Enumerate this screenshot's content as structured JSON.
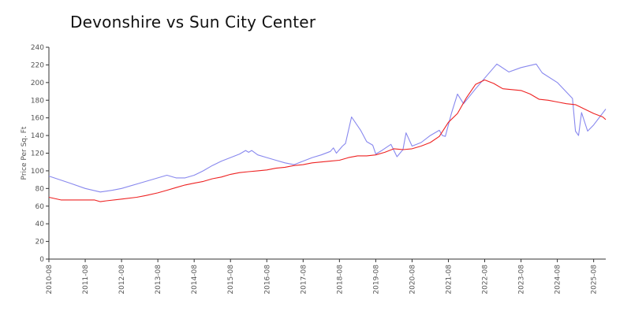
{
  "chart_data": {
    "type": "line",
    "title": "Devonshire vs Sun City Center",
    "ylabel": "Price Per Sq. Ft",
    "xlabel": "",
    "ylim": [
      0,
      240
    ],
    "yticks": [
      "0",
      "20",
      "40",
      "60",
      "80",
      "100",
      "120",
      "140",
      "160",
      "180",
      "200",
      "220",
      "240"
    ],
    "xticks": [
      "2010-08",
      "2011-08",
      "2012-08",
      "2013-08",
      "2014-08",
      "2015-08",
      "2016-08",
      "2017-08",
      "2018-08",
      "2019-08",
      "2020-08",
      "2021-08",
      "2022-08",
      "2023-08",
      "2024-08",
      "2025-08"
    ],
    "grid": false,
    "legend": "none",
    "series": [
      {
        "color": "#8888ee",
        "points": [
          [
            "2010-08",
            94
          ],
          [
            "2011-03",
            86
          ],
          [
            "2011-08",
            80
          ],
          [
            "2012-01",
            76
          ],
          [
            "2012-05",
            78
          ],
          [
            "2012-08",
            80
          ],
          [
            "2013-03",
            87
          ],
          [
            "2013-08",
            92
          ],
          [
            "2013-11",
            95
          ],
          [
            "2014-02",
            92
          ],
          [
            "2014-05",
            92
          ],
          [
            "2014-08",
            95
          ],
          [
            "2014-11",
            100
          ],
          [
            "2015-02",
            106
          ],
          [
            "2015-05",
            111
          ],
          [
            "2015-08",
            115
          ],
          [
            "2015-11",
            119
          ],
          [
            "2016-01",
            123
          ],
          [
            "2016-02",
            121
          ],
          [
            "2016-03",
            123
          ],
          [
            "2016-05",
            118
          ],
          [
            "2016-08",
            115
          ],
          [
            "2016-11",
            112
          ],
          [
            "2017-02",
            109
          ],
          [
            "2017-05",
            107
          ],
          [
            "2017-08",
            111
          ],
          [
            "2017-11",
            115
          ],
          [
            "2018-02",
            118
          ],
          [
            "2018-05",
            122
          ],
          [
            "2018-06",
            126
          ],
          [
            "2018-07",
            120
          ],
          [
            "2018-09",
            128
          ],
          [
            "2018-10",
            131
          ],
          [
            "2018-12",
            161
          ],
          [
            "2019-03",
            146
          ],
          [
            "2019-05",
            133
          ],
          [
            "2019-07",
            129
          ],
          [
            "2019-08",
            119
          ],
          [
            "2019-10",
            123
          ],
          [
            "2020-01",
            130
          ],
          [
            "2020-03",
            116
          ],
          [
            "2020-05",
            124
          ],
          [
            "2020-06",
            143
          ],
          [
            "2020-08",
            128
          ],
          [
            "2020-11",
            132
          ],
          [
            "2021-02",
            140
          ],
          [
            "2021-05",
            146
          ],
          [
            "2021-06",
            140
          ],
          [
            "2021-07",
            139
          ],
          [
            "2021-09",
            165
          ],
          [
            "2021-11",
            187
          ],
          [
            "2022-01",
            176
          ],
          [
            "2022-05",
            193
          ],
          [
            "2022-08",
            205
          ],
          [
            "2022-12",
            221
          ],
          [
            "2023-04",
            212
          ],
          [
            "2023-08",
            217
          ],
          [
            "2024-01",
            221
          ],
          [
            "2024-03",
            211
          ],
          [
            "2024-08",
            200
          ],
          [
            "2025-01",
            182
          ],
          [
            "2025-02",
            145
          ],
          [
            "2025-03",
            140
          ],
          [
            "2025-04",
            166
          ],
          [
            "2025-06",
            145
          ],
          [
            "2025-08",
            152
          ],
          [
            "2025-12",
            170
          ]
        ]
      },
      {
        "color": "#ee2222",
        "points": [
          [
            "2010-08",
            70
          ],
          [
            "2010-12",
            67
          ],
          [
            "2011-06",
            67
          ],
          [
            "2011-08",
            67
          ],
          [
            "2011-11",
            67
          ],
          [
            "2012-01",
            65
          ],
          [
            "2012-03",
            66
          ],
          [
            "2012-08",
            68
          ],
          [
            "2013-01",
            70
          ],
          [
            "2013-04",
            72
          ],
          [
            "2013-08",
            75
          ],
          [
            "2013-11",
            78
          ],
          [
            "2014-02",
            81
          ],
          [
            "2014-05",
            84
          ],
          [
            "2014-08",
            86
          ],
          [
            "2014-11",
            88
          ],
          [
            "2015-02",
            91
          ],
          [
            "2015-05",
            93
          ],
          [
            "2015-08",
            96
          ],
          [
            "2015-11",
            98
          ],
          [
            "2016-02",
            99
          ],
          [
            "2016-05",
            100
          ],
          [
            "2016-08",
            101
          ],
          [
            "2016-11",
            103
          ],
          [
            "2017-02",
            104
          ],
          [
            "2017-05",
            106
          ],
          [
            "2017-08",
            107
          ],
          [
            "2017-11",
            109
          ],
          [
            "2018-02",
            110
          ],
          [
            "2018-05",
            111
          ],
          [
            "2018-08",
            112
          ],
          [
            "2018-11",
            115
          ],
          [
            "2019-02",
            117
          ],
          [
            "2019-05",
            117
          ],
          [
            "2019-08",
            118
          ],
          [
            "2019-11",
            121
          ],
          [
            "2020-02",
            125
          ],
          [
            "2020-05",
            124
          ],
          [
            "2020-08",
            125
          ],
          [
            "2020-11",
            128
          ],
          [
            "2021-02",
            132
          ],
          [
            "2021-05",
            139
          ],
          [
            "2021-08",
            155
          ],
          [
            "2021-11",
            165
          ],
          [
            "2022-02",
            183
          ],
          [
            "2022-05",
            198
          ],
          [
            "2022-08",
            203
          ],
          [
            "2022-11",
            199
          ],
          [
            "2023-02",
            193
          ],
          [
            "2023-05",
            192
          ],
          [
            "2023-08",
            191
          ],
          [
            "2023-11",
            187
          ],
          [
            "2024-02",
            181
          ],
          [
            "2024-05",
            180
          ],
          [
            "2024-08",
            178
          ],
          [
            "2024-11",
            176
          ],
          [
            "2025-02",
            175
          ],
          [
            "2025-05",
            170
          ],
          [
            "2025-08",
            165
          ],
          [
            "2025-11",
            161
          ],
          [
            "2025-12",
            158
          ]
        ]
      }
    ]
  }
}
